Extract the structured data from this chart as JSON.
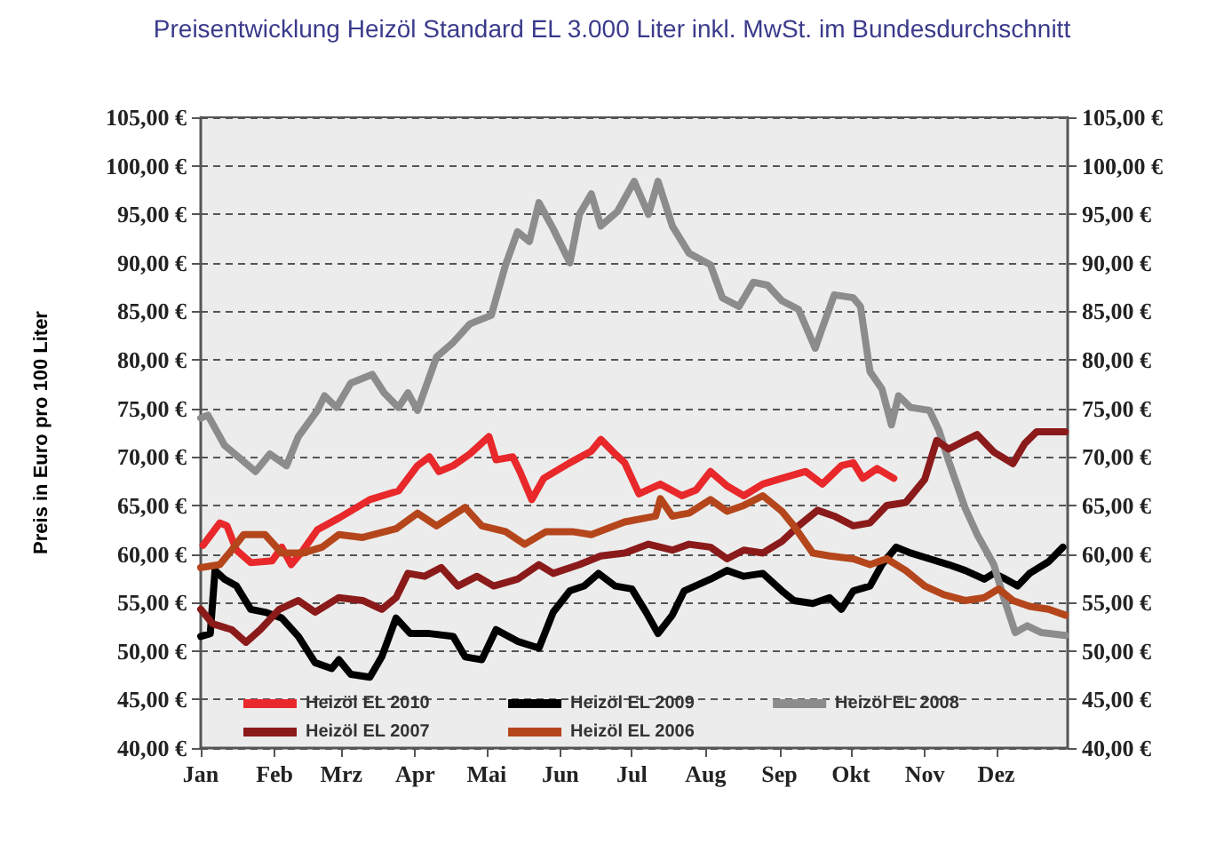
{
  "chart_data": {
    "type": "line",
    "title": "Preisentwicklung Heizöl Standard EL 3.000 Liter inkl. MwSt. im Bundesdurchschnitt",
    "ylabel": "Preis in Euro pro 100 Liter",
    "xlim": [
      "--01-01",
      "--12-31"
    ],
    "xticks": [
      {
        "value": "--01-01",
        "label": "Jan"
      },
      {
        "value": "--02-01",
        "label": "Feb"
      },
      {
        "value": "--03-01",
        "label": "Mrz"
      },
      {
        "value": "--04-01",
        "label": "Apr"
      },
      {
        "value": "--05-01",
        "label": "Mai"
      },
      {
        "value": "--06-01",
        "label": "Jun"
      },
      {
        "value": "--07-01",
        "label": "Jul"
      },
      {
        "value": "--08-01",
        "label": "Aug"
      },
      {
        "value": "--09-01",
        "label": "Sep"
      },
      {
        "value": "--10-01",
        "label": "Okt"
      },
      {
        "value": "--11-01",
        "label": "Nov"
      },
      {
        "value": "--12-01",
        "label": "Dez"
      }
    ],
    "ylim": [
      40,
      105
    ],
    "yticks": [
      {
        "value": 40,
        "label": "40,00 €"
      },
      {
        "value": 45,
        "label": "45,00 €"
      },
      {
        "value": 50,
        "label": "50,00 €"
      },
      {
        "value": 55,
        "label": "55,00 €"
      },
      {
        "value": 60,
        "label": "60,00 €"
      },
      {
        "value": 65,
        "label": "65,00 €"
      },
      {
        "value": 70,
        "label": "70,00 €"
      },
      {
        "value": 75,
        "label": "75,00 €"
      },
      {
        "value": 80,
        "label": "80,00 €"
      },
      {
        "value": 85,
        "label": "85,00 €"
      },
      {
        "value": 90,
        "label": "90,00 €"
      },
      {
        "value": 95,
        "label": "95,00 €"
      },
      {
        "value": 100,
        "label": "100,00 €"
      },
      {
        "value": 105,
        "label": "105,00 €"
      }
    ],
    "y2lim": [
      40,
      105
    ],
    "y2ticks": [
      {
        "value": 40,
        "label": "40,00 €"
      },
      {
        "value": 45,
        "label": "45,00 €"
      },
      {
        "value": 50,
        "label": "50,00 €"
      },
      {
        "value": 55,
        "label": "55,00 €"
      },
      {
        "value": 60,
        "label": "60,00 €"
      },
      {
        "value": 65,
        "label": "65,00 €"
      },
      {
        "value": 70,
        "label": "70,00 €"
      },
      {
        "value": 75,
        "label": "75,00 €"
      },
      {
        "value": 80,
        "label": "80,00 €"
      },
      {
        "value": 85,
        "label": "85,00 €"
      },
      {
        "value": 90,
        "label": "90,00 €"
      },
      {
        "value": 95,
        "label": "95,00 €"
      },
      {
        "value": 100,
        "label": "100,00 €"
      },
      {
        "value": 105,
        "label": "105,00 €"
      }
    ],
    "grid": "y",
    "legend": "bottom",
    "marker": "none",
    "line_style": "solid",
    "series": [
      {
        "name": "Heizöl EL 2010",
        "color": "#e8282a",
        "x": [
          "--01-02",
          "--01-09",
          "--01-12",
          "--01-16",
          "--01-22",
          "--01-31",
          "--02-04",
          "--02-08",
          "--02-13",
          "--02-19",
          "--02-28",
          "--03-13",
          "--03-25",
          "--04-02",
          "--04-07",
          "--04-11",
          "--04-17",
          "--04-24",
          "--05-02",
          "--05-05",
          "--05-12",
          "--05-15",
          "--05-20",
          "--05-25",
          "--06-05",
          "--06-14",
          "--06-18",
          "--06-24",
          "--06-28",
          "--07-04",
          "--07-13",
          "--07-22",
          "--07-28",
          "--08-03",
          "--08-10",
          "--08-17",
          "--08-25",
          "--09-02",
          "--09-12",
          "--09-19",
          "--09-27",
          "--10-02",
          "--10-06",
          "--10-12",
          "--10-19"
        ],
        "values": [
          60.9,
          63.2,
          62.9,
          60.4,
          59.1,
          59.3,
          60.7,
          58.9,
          60.4,
          62.5,
          63.7,
          65.6,
          66.5,
          69.1,
          70,
          68.5,
          69.1,
          70.3,
          72.1,
          69.7,
          70,
          68.5,
          65.6,
          67.8,
          69.4,
          70.6,
          71.8,
          70.3,
          69.4,
          66.2,
          67.2,
          66,
          66.6,
          68.5,
          67,
          66,
          67.2,
          67.8,
          68.5,
          67.2,
          69.1,
          69.4,
          67.8,
          68.8,
          67.8
        ]
      },
      {
        "name": "Heizöl EL 2009",
        "color": "#000000",
        "x": [
          "--01-01",
          "--01-05",
          "--01-07",
          "--01-11",
          "--01-16",
          "--01-22",
          "--01-28",
          "--02-04",
          "--02-11",
          "--02-18",
          "--02-25",
          "--02-28",
          "--03-05",
          "--03-13",
          "--03-18",
          "--03-24",
          "--03-30",
          "--04-07",
          "--04-17",
          "--04-22",
          "--04-29",
          "--05-05",
          "--05-14",
          "--05-23",
          "--05-29",
          "--06-05",
          "--06-11",
          "--06-17",
          "--06-24",
          "--07-01",
          "--07-07",
          "--07-12",
          "--07-18",
          "--07-23",
          "--08-03",
          "--08-10",
          "--08-17",
          "--08-25",
          "--09-02",
          "--09-07",
          "--09-15",
          "--09-22",
          "--09-27",
          "--10-02",
          "--10-09",
          "--10-14",
          "--10-20",
          "--10-26",
          "--11-03",
          "--11-11",
          "--11-18",
          "--11-26",
          "--11-30",
          "--12-05",
          "--12-10",
          "--12-15",
          "--12-23",
          "--12-29"
        ],
        "values": [
          51.5,
          51.8,
          58.3,
          57.4,
          56.7,
          54.3,
          54,
          53.4,
          51.5,
          48.8,
          48.2,
          49.1,
          47.6,
          47.3,
          49.4,
          53.4,
          51.8,
          51.8,
          51.5,
          49.4,
          49.1,
          52.2,
          51,
          50.3,
          54,
          56.2,
          56.7,
          58,
          56.7,
          56.4,
          54,
          51.8,
          53.7,
          56.2,
          57.4,
          58.3,
          57.7,
          58,
          56.2,
          55.2,
          54.9,
          55.5,
          54.3,
          56.2,
          56.7,
          58.9,
          60.7,
          60.1,
          59.5,
          58.9,
          58.3,
          57.4,
          58,
          57.4,
          56.7,
          58,
          59.2,
          60.7
        ]
      },
      {
        "name": "Heizöl EL 2008",
        "color": "#8c8c8c",
        "x": [
          "--01-01",
          "--01-04",
          "--01-11",
          "--01-24",
          "--01-30",
          "--02-06",
          "--02-11",
          "--02-19",
          "--02-22",
          "--02-27",
          "--03-05",
          "--03-14",
          "--03-19",
          "--03-25",
          "--03-29",
          "--04-02",
          "--04-10",
          "--04-17",
          "--04-24",
          "--05-03",
          "--05-09",
          "--05-14",
          "--05-19",
          "--05-23",
          "--05-29",
          "--06-05",
          "--06-09",
          "--06-14",
          "--06-18",
          "--06-25",
          "--07-02",
          "--07-08",
          "--07-12",
          "--07-18",
          "--07-25",
          "--08-03",
          "--08-08",
          "--08-15",
          "--08-21",
          "--08-27",
          "--09-02",
          "--09-09",
          "--09-16",
          "--09-19",
          "--09-24",
          "--10-02",
          "--10-05",
          "--10-09",
          "--10-14",
          "--10-18",
          "--10-21",
          "--10-26",
          "--11-03",
          "--11-07",
          "--11-11",
          "--11-18",
          "--11-23",
          "--11-30",
          "--12-04",
          "--12-09",
          "--12-14",
          "--12-20",
          "--12-30"
        ],
        "values": [
          74,
          74.3,
          71.2,
          68.5,
          70.3,
          69.1,
          72.1,
          74.8,
          76.3,
          75.1,
          77.6,
          78.5,
          76.6,
          75.1,
          76.6,
          74.8,
          80.3,
          81.8,
          83.7,
          84.6,
          89.8,
          93.2,
          92.2,
          96.2,
          93.5,
          90,
          95,
          97.1,
          93.8,
          95.3,
          98.4,
          95,
          98.4,
          93.8,
          91,
          89.8,
          86.4,
          85.5,
          88,
          87.7,
          86.1,
          85.2,
          81.2,
          83.3,
          86.7,
          86.4,
          85.5,
          78.8,
          77,
          73.3,
          76.3,
          75.1,
          74.8,
          72.7,
          69.6,
          64.7,
          62,
          58.9,
          55.6,
          51.9,
          52.6,
          51.9,
          51.6
        ]
      },
      {
        "name": "Heizöl EL 2007",
        "color": "#8b1a1a",
        "x": [
          "--01-01",
          "--01-06",
          "--01-14",
          "--01-20",
          "--01-26",
          "--02-03",
          "--02-11",
          "--02-18",
          "--02-28",
          "--03-10",
          "--03-18",
          "--03-24",
          "--03-29",
          "--04-05",
          "--04-12",
          "--04-19",
          "--04-27",
          "--05-04",
          "--05-14",
          "--05-23",
          "--05-29",
          "--06-09",
          "--06-18",
          "--06-28",
          "--07-08",
          "--07-18",
          "--07-25",
          "--08-03",
          "--08-10",
          "--08-17",
          "--08-25",
          "--09-02",
          "--09-09",
          "--09-17",
          "--09-24",
          "--10-02",
          "--10-09",
          "--10-16",
          "--10-24",
          "--11-01",
          "--11-06",
          "--11-11",
          "--11-18",
          "--11-23",
          "--11-30",
          "--12-08",
          "--12-13",
          "--12-18",
          "--12-30"
        ],
        "values": [
          54.3,
          52.8,
          52.2,
          50.9,
          52.2,
          54.3,
          55.2,
          54,
          55.5,
          55.2,
          54.3,
          55.5,
          58,
          57.7,
          58.6,
          56.7,
          57.7,
          56.7,
          57.4,
          58.9,
          58,
          58.9,
          59.8,
          60.1,
          61,
          60.4,
          61,
          60.7,
          59.5,
          60.4,
          60.1,
          61.3,
          62.9,
          64.5,
          63.9,
          62.9,
          63.2,
          65,
          65.3,
          67.7,
          71.7,
          70.8,
          71.7,
          72.3,
          70.5,
          69.3,
          71.4,
          72.6,
          72.6
        ]
      },
      {
        "name": "Heizöl EL 2006",
        "color": "#b5461c",
        "x": [
          "--01-01",
          "--01-09",
          "--01-14",
          "--01-19",
          "--01-28",
          "--02-04",
          "--02-13",
          "--02-21",
          "--02-28",
          "--03-10",
          "--03-24",
          "--04-02",
          "--04-10",
          "--04-22",
          "--04-29",
          "--05-09",
          "--05-17",
          "--05-26",
          "--06-06",
          "--06-14",
          "--06-28",
          "--07-11",
          "--07-13",
          "--07-18",
          "--07-25",
          "--08-03",
          "--08-10",
          "--08-17",
          "--08-25",
          "--09-02",
          "--09-07",
          "--09-15",
          "--09-22",
          "--10-02",
          "--10-09",
          "--10-16",
          "--10-24",
          "--11-01",
          "--11-09",
          "--11-18",
          "--11-26",
          "--12-02",
          "--12-08",
          "--12-15",
          "--12-23",
          "--12-30"
        ],
        "values": [
          58.6,
          58.9,
          60.4,
          62,
          62,
          60.1,
          60.1,
          60.7,
          62,
          61.7,
          62.6,
          64.2,
          62.9,
          64.8,
          62.9,
          62.3,
          61,
          62.3,
          62.3,
          62,
          63.3,
          63.9,
          65.7,
          63.9,
          64.2,
          65.6,
          64.4,
          65,
          66,
          64.4,
          62.9,
          60.1,
          59.8,
          59.5,
          58.9,
          59.5,
          58.3,
          56.7,
          55.8,
          55.2,
          55.5,
          56.4,
          55.2,
          54.6,
          54.3,
          53.7
        ]
      }
    ]
  }
}
